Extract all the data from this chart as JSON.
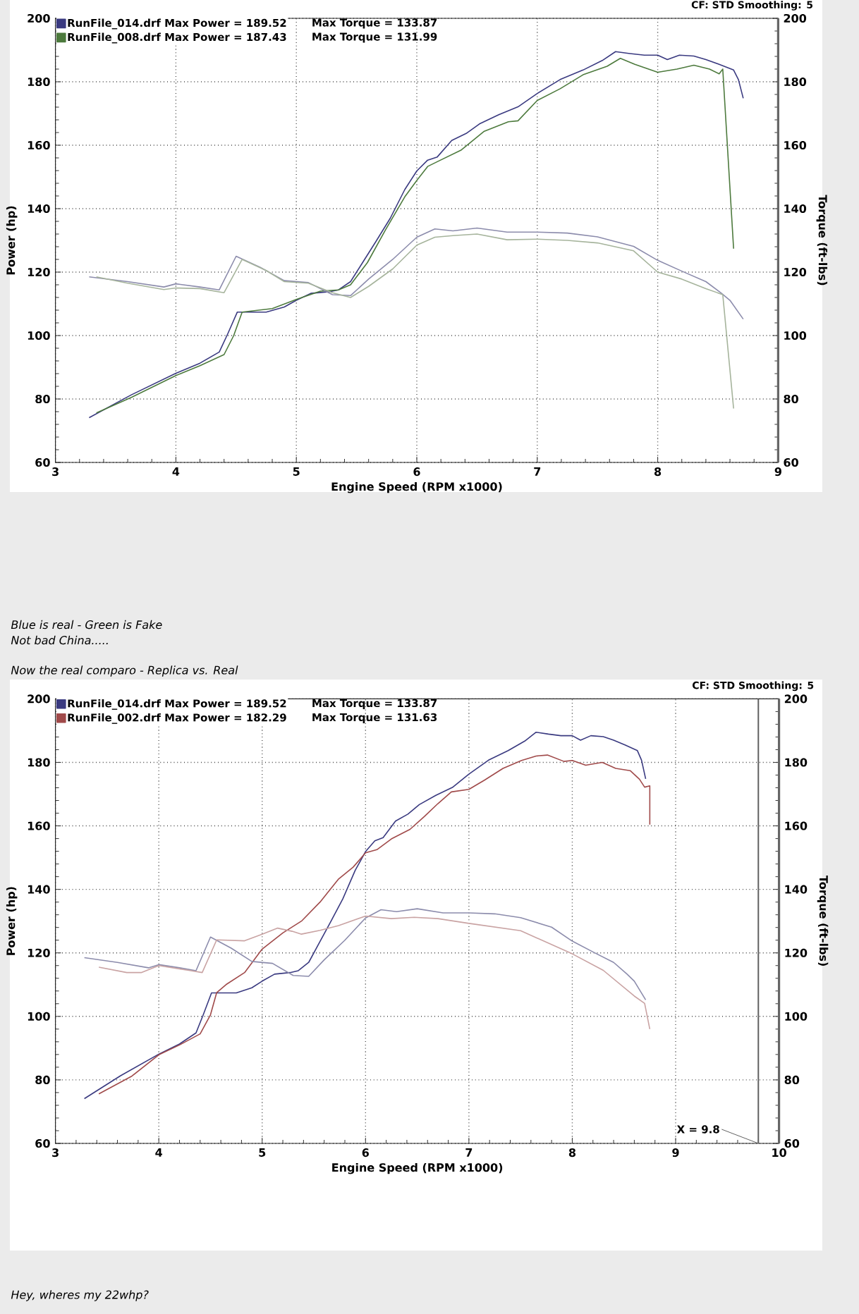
{
  "chart_data": [
    {
      "type": "line",
      "xlabel": "Engine Speed (RPM x1000)",
      "ylabel": "Power (hp)",
      "y2label": "Torque (ft-lbs)",
      "xlim": [
        3,
        9
      ],
      "xticks": [
        3,
        4,
        5,
        6,
        7,
        8,
        9
      ],
      "ylim": [
        60,
        200
      ],
      "yticks": [
        60,
        80,
        100,
        120,
        140,
        160,
        180,
        200
      ],
      "y2lim": [
        60,
        200
      ],
      "y2ticks": [
        60,
        80,
        100,
        120,
        140,
        160,
        180,
        200
      ],
      "grid": true,
      "legend": "top left",
      "series": [
        {
          "name": "RunFile_014.drf Max Power = 189.52",
          "color": "#3a3a80",
          "x": [
            3.28,
            3.63,
            4.0,
            4.2,
            4.36,
            4.43,
            4.51,
            4.75,
            4.9,
            5.0,
            5.12,
            5.27,
            5.35,
            5.45,
            5.55,
            5.66,
            5.78,
            5.9,
            6.0,
            6.09,
            6.17,
            6.29,
            6.41,
            6.52,
            6.68,
            6.84,
            7.0,
            7.19,
            7.38,
            7.54,
            7.65,
            7.77,
            7.89,
            8.0,
            8.08,
            8.18,
            8.3,
            8.4,
            8.51,
            8.63,
            8.67,
            8.71
          ],
          "values": [
            74.1,
            81.3,
            88.1,
            91.3,
            94.8,
            100.5,
            107.4,
            107.4,
            109.0,
            111.1,
            113.3,
            113.8,
            114.4,
            117.0,
            123.0,
            129.6,
            137.0,
            146.0,
            151.9,
            155.3,
            156.3,
            161.5,
            163.7,
            166.7,
            169.6,
            172.1,
            176.3,
            180.7,
            183.7,
            186.7,
            189.5,
            188.9,
            188.4,
            188.4,
            187.0,
            188.4,
            188.1,
            187.0,
            185.5,
            183.7,
            180.7,
            174.8
          ]
        },
        {
          "color": "#8c8cac",
          "axis": "y2",
          "x": [
            3.28,
            3.6,
            3.9,
            4.0,
            4.2,
            4.36,
            4.5,
            4.7,
            4.9,
            5.1,
            5.3,
            5.45,
            5.6,
            5.8,
            6.0,
            6.15,
            6.3,
            6.5,
            6.75,
            7.0,
            7.25,
            7.5,
            7.8,
            8.0,
            8.2,
            8.4,
            8.53,
            8.6,
            8.71
          ],
          "values": [
            118.5,
            117.0,
            115.3,
            116.3,
            115.3,
            114.4,
            125.0,
            121.5,
            117.3,
            116.7,
            112.9,
            112.6,
            117.8,
            124.0,
            131.0,
            133.6,
            133.0,
            133.9,
            132.6,
            132.6,
            132.3,
            131.1,
            128.1,
            123.7,
            120.3,
            117.0,
            113.3,
            111.1,
            105.2
          ]
        },
        {
          "name": "RunFile_008.drf Max Power = 187.43",
          "color": "#4d7a3d",
          "x": [
            3.34,
            3.63,
            4.0,
            4.2,
            4.4,
            4.48,
            4.55,
            4.8,
            5.0,
            5.2,
            5.35,
            5.45,
            5.59,
            5.74,
            5.9,
            6.0,
            6.09,
            6.17,
            6.37,
            6.56,
            6.76,
            6.84,
            7.0,
            7.19,
            7.38,
            7.58,
            7.69,
            7.81,
            8.0,
            8.16,
            8.3,
            8.43,
            8.51,
            8.54,
            8.63
          ],
          "values": [
            75.6,
            80.5,
            87.4,
            90.5,
            94.0,
            100.0,
            107.4,
            108.5,
            111.4,
            114.0,
            114.4,
            116.0,
            123.0,
            133.3,
            143.7,
            148.9,
            153.3,
            154.8,
            158.5,
            164.4,
            167.4,
            167.7,
            174.1,
            177.8,
            182.2,
            184.9,
            187.4,
            185.5,
            183.0,
            184.0,
            185.2,
            184.0,
            182.5,
            184.0,
            127.4
          ]
        },
        {
          "color": "#a6b49c",
          "axis": "y2",
          "x": [
            3.34,
            3.6,
            3.9,
            4.0,
            4.2,
            4.4,
            4.55,
            4.75,
            4.9,
            5.1,
            5.3,
            5.45,
            5.6,
            5.8,
            6.0,
            6.15,
            6.3,
            6.5,
            6.75,
            7.0,
            7.25,
            7.5,
            7.8,
            8.0,
            8.2,
            8.4,
            8.54,
            8.63
          ],
          "values": [
            118.5,
            116.5,
            114.5,
            115.0,
            114.8,
            113.5,
            124.0,
            120.5,
            117.0,
            116.5,
            113.5,
            112.0,
            115.5,
            121.0,
            128.5,
            131.0,
            131.5,
            132.0,
            130.2,
            130.4,
            130.0,
            129.2,
            126.7,
            120.0,
            117.8,
            114.8,
            112.9,
            77.0
          ]
        }
      ],
      "annotations": [
        "Max Torque = 133.87",
        "Max Torque = 131.99",
        "CF: STD Smoothing: 5",
        "Blue is real - Green is Fake",
        "Not bad China....."
      ]
    },
    {
      "type": "line",
      "title": "Now the real comparo - Replica vs. Real",
      "xlabel": "Engine Speed (RPM x1000)",
      "ylabel": "Power (hp)",
      "y2label": "Torque (ft-lbs)",
      "xlim": [
        3,
        10
      ],
      "xticks": [
        3,
        4,
        5,
        6,
        7,
        8,
        9,
        10
      ],
      "ylim": [
        60,
        200
      ],
      "yticks": [
        60,
        80,
        100,
        120,
        140,
        160,
        180,
        200
      ],
      "y2lim": [
        60,
        200
      ],
      "y2ticks": [
        60,
        80,
        100,
        120,
        140,
        160,
        180,
        200
      ],
      "grid": true,
      "legend": "top left",
      "series": [
        {
          "name": "RunFile_014.drf Max Power = 189.52",
          "color": "#3a3a80",
          "x": [
            3.28,
            3.63,
            4.0,
            4.2,
            4.36,
            4.43,
            4.51,
            4.75,
            4.9,
            5.0,
            5.12,
            5.27,
            5.35,
            5.45,
            5.55,
            5.66,
            5.78,
            5.9,
            6.0,
            6.09,
            6.17,
            6.29,
            6.41,
            6.52,
            6.68,
            6.84,
            7.0,
            7.19,
            7.38,
            7.54,
            7.65,
            7.77,
            7.89,
            8.0,
            8.08,
            8.18,
            8.3,
            8.4,
            8.51,
            8.63,
            8.67,
            8.71
          ],
          "values": [
            74.1,
            81.3,
            88.1,
            91.3,
            94.8,
            100.5,
            107.4,
            107.4,
            109.0,
            111.1,
            113.3,
            113.8,
            114.4,
            117.0,
            123.0,
            129.6,
            137.0,
            146.0,
            151.9,
            155.3,
            156.3,
            161.5,
            163.7,
            166.7,
            169.6,
            172.1,
            176.3,
            180.7,
            183.7,
            186.7,
            189.5,
            188.9,
            188.4,
            188.4,
            187.0,
            188.4,
            188.1,
            187.0,
            185.5,
            183.7,
            180.7,
            174.8
          ]
        },
        {
          "color": "#8c8cac",
          "axis": "y2",
          "x": [
            3.28,
            3.6,
            3.9,
            4.0,
            4.2,
            4.36,
            4.5,
            4.7,
            4.9,
            5.1,
            5.3,
            5.45,
            5.6,
            5.8,
            6.0,
            6.15,
            6.3,
            6.5,
            6.75,
            7.0,
            7.25,
            7.5,
            7.8,
            8.0,
            8.2,
            8.4,
            8.53,
            8.6,
            8.71
          ],
          "values": [
            118.5,
            117.0,
            115.3,
            116.3,
            115.3,
            114.4,
            125.0,
            121.5,
            117.3,
            116.7,
            112.9,
            112.6,
            117.8,
            124.0,
            131.0,
            133.6,
            133.0,
            133.9,
            132.6,
            132.6,
            132.3,
            131.1,
            128.1,
            123.7,
            120.3,
            117.0,
            113.3,
            111.1,
            105.2
          ]
        },
        {
          "name": "RunFile_002.drf Max Power = 182.29",
          "color": "#a04a4a",
          "x": [
            3.42,
            3.74,
            4.0,
            4.2,
            4.4,
            4.5,
            4.56,
            4.65,
            4.83,
            5.0,
            5.2,
            5.38,
            5.56,
            5.74,
            5.88,
            6.0,
            6.11,
            6.25,
            6.43,
            6.57,
            6.7,
            6.83,
            7.0,
            7.15,
            7.33,
            7.51,
            7.65,
            7.76,
            7.92,
            8.0,
            8.13,
            8.29,
            8.42,
            8.56,
            8.65,
            8.7,
            8.75,
            8.75
          ],
          "values": [
            75.6,
            81.2,
            87.9,
            91.0,
            94.5,
            100.5,
            107.5,
            110.0,
            113.8,
            121.2,
            126.3,
            130.0,
            136.0,
            143.3,
            147.0,
            151.5,
            152.5,
            155.9,
            158.9,
            163.0,
            167.0,
            170.7,
            171.5,
            174.4,
            178.1,
            180.6,
            182.0,
            182.3,
            180.3,
            180.6,
            179.1,
            180.0,
            178.1,
            177.4,
            174.7,
            172.2,
            172.6,
            160.4
          ]
        },
        {
          "color": "#c9a3a3",
          "axis": "y2",
          "x": [
            3.42,
            3.69,
            3.83,
            4.0,
            4.29,
            4.42,
            4.56,
            4.83,
            5.0,
            5.15,
            5.29,
            5.38,
            5.56,
            5.74,
            6.0,
            6.25,
            6.47,
            6.7,
            7.0,
            7.5,
            8.0,
            8.3,
            8.6,
            8.7,
            8.75
          ],
          "values": [
            115.5,
            113.8,
            113.8,
            116.0,
            114.5,
            113.8,
            124.1,
            123.8,
            125.9,
            127.8,
            126.8,
            125.9,
            127.1,
            128.6,
            131.6,
            130.8,
            131.2,
            130.8,
            129.3,
            127.0,
            119.7,
            114.5,
            106.4,
            104.1,
            96.0
          ]
        }
      ],
      "ref_lines": [
        {
          "axis": "x",
          "value": 9.8,
          "label": "X = 9.8",
          "color": "#606060"
        }
      ],
      "annotations": [
        "Max Torque = 133.87",
        "Max Torque = 131.63",
        "CF: STD Smoothing: 5",
        "Hey, wheres my 22whp?"
      ]
    }
  ]
}
